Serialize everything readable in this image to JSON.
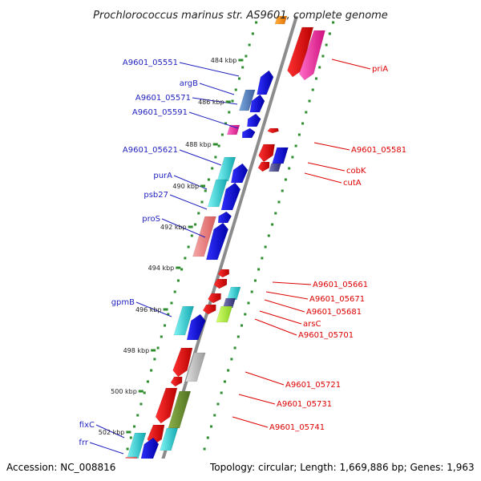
{
  "title": "Prochlorococcus marinus str. AS9601, complete genome",
  "footer": {
    "accession": "Accession: NC_008816",
    "topology": "Topology: circular; Length: 1,669,886 bp; Genes: 1,963"
  },
  "colors": {
    "axis": "#8c8c8c",
    "tick": "#2e8b2e",
    "left_label": "#1f1fbf",
    "right_label": "#dd0000"
  },
  "kbp_ticks": [
    "484 kbp",
    "486 kbp",
    "488 kbp",
    "490 kbp",
    "492 kbp",
    "494 kbp",
    "496 kbp",
    "498 kbp",
    "500 kbp",
    "502 kbp"
  ],
  "left_labels": [
    "A9601_05551",
    "argB",
    "A9601_05571",
    "A9601_05591",
    "A9601_05621",
    "purA",
    "psb27",
    "proS",
    "gpmB",
    "fixC",
    "frr"
  ],
  "right_labels": [
    "priA",
    "A9601_05581",
    "cobK",
    "cutA",
    "A9601_05661",
    "A9601_05671",
    "A9601_05681",
    "arsC",
    "A9601_05701",
    "A9601_05721",
    "A9601_05731",
    "A9601_05741"
  ]
}
